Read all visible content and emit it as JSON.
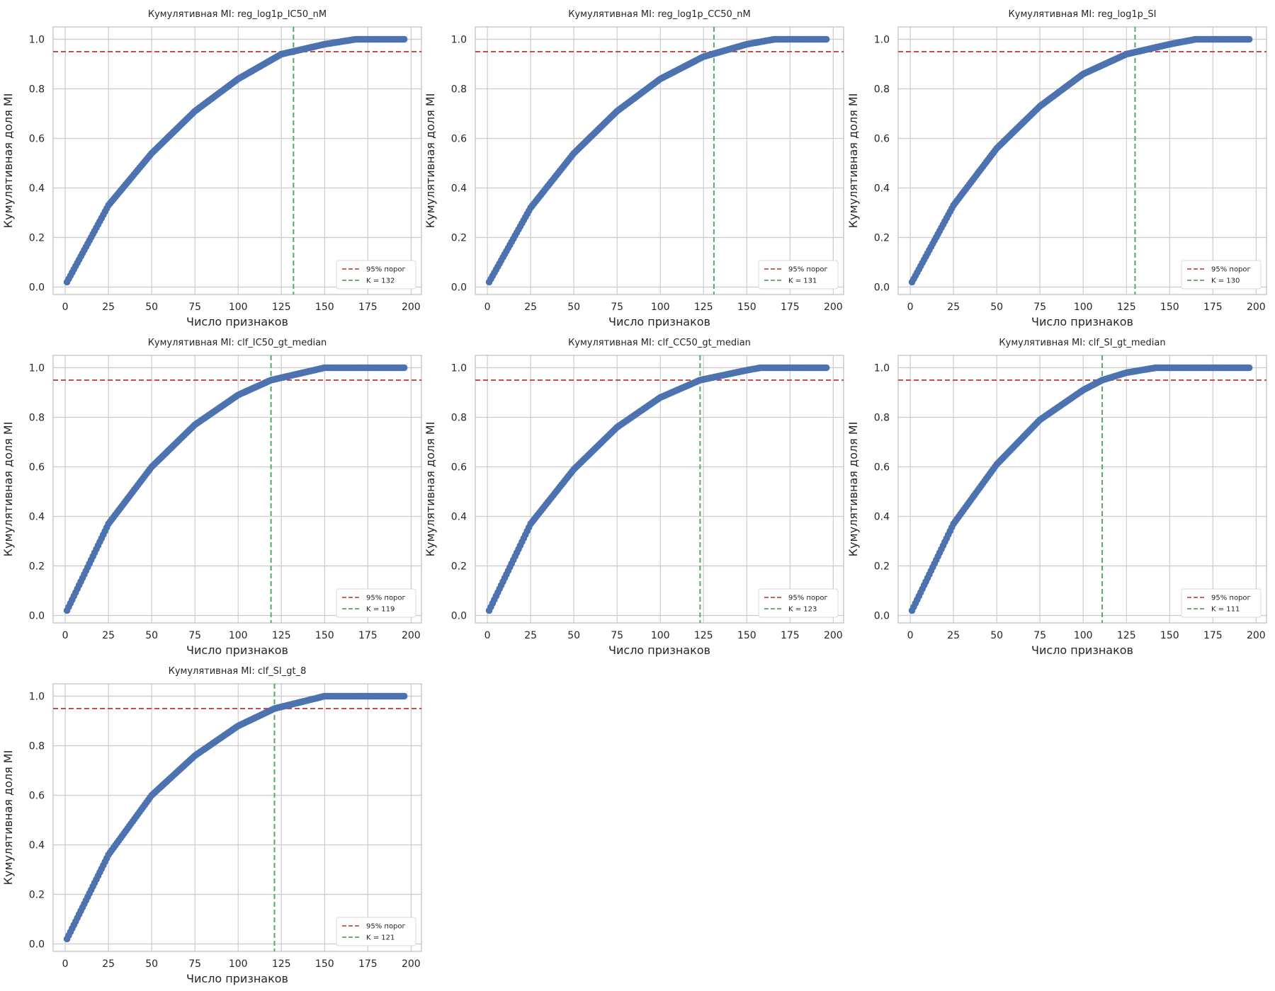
{
  "chart_data": [
    {
      "type": "scatter",
      "title": "Кумулятивная MI: reg_log1p_IC50_nM",
      "xlabel": "Число признаков",
      "ylabel": "Кумулятивная доля MI",
      "xlim": [
        -7,
        206
      ],
      "ylim": [
        -0.03,
        1.05
      ],
      "xticks": [
        0,
        25,
        50,
        75,
        100,
        125,
        150,
        175,
        200
      ],
      "yticks": [
        0.0,
        0.2,
        0.4,
        0.6,
        0.8,
        1.0
      ],
      "grid": true,
      "legend_position": "lower-right",
      "n_features": 196,
      "x_saturation": 168,
      "curve_y_at_x": [
        [
          1,
          0.02
        ],
        [
          25,
          0.33
        ],
        [
          50,
          0.54
        ],
        [
          75,
          0.71
        ],
        [
          100,
          0.84
        ],
        [
          125,
          0.94
        ],
        [
          150,
          0.98
        ],
        [
          168,
          1.0
        ],
        [
          196,
          1.0
        ]
      ],
      "threshold": 0.95,
      "k": 132,
      "legend": [
        "95% порог",
        "K = 132"
      ]
    },
    {
      "type": "scatter",
      "title": "Кумулятивная MI: reg_log1p_CC50_nM",
      "xlabel": "Число признаков",
      "ylabel": "Кумулятивная доля MI",
      "xlim": [
        -7,
        206
      ],
      "ylim": [
        -0.03,
        1.05
      ],
      "xticks": [
        0,
        25,
        50,
        75,
        100,
        125,
        150,
        175,
        200
      ],
      "yticks": [
        0.0,
        0.2,
        0.4,
        0.6,
        0.8,
        1.0
      ],
      "grid": true,
      "legend_position": "lower-right",
      "n_features": 196,
      "x_saturation": 166,
      "curve_y_at_x": [
        [
          1,
          0.02
        ],
        [
          25,
          0.32
        ],
        [
          50,
          0.54
        ],
        [
          75,
          0.71
        ],
        [
          100,
          0.84
        ],
        [
          125,
          0.93
        ],
        [
          150,
          0.98
        ],
        [
          166,
          1.0
        ],
        [
          196,
          1.0
        ]
      ],
      "threshold": 0.95,
      "k": 131,
      "legend": [
        "95% порог",
        "K = 131"
      ]
    },
    {
      "type": "scatter",
      "title": "Кумулятивная MI: reg_log1p_SI",
      "xlabel": "Число признаков",
      "ylabel": "Кумулятивная доля MI",
      "xlim": [
        -7,
        206
      ],
      "ylim": [
        -0.03,
        1.05
      ],
      "xticks": [
        0,
        25,
        50,
        75,
        100,
        125,
        150,
        175,
        200
      ],
      "yticks": [
        0.0,
        0.2,
        0.4,
        0.6,
        0.8,
        1.0
      ],
      "grid": true,
      "legend_position": "lower-right",
      "n_features": 196,
      "x_saturation": 165,
      "curve_y_at_x": [
        [
          1,
          0.02
        ],
        [
          25,
          0.33
        ],
        [
          50,
          0.56
        ],
        [
          75,
          0.73
        ],
        [
          100,
          0.86
        ],
        [
          125,
          0.94
        ],
        [
          150,
          0.98
        ],
        [
          165,
          1.0
        ],
        [
          196,
          1.0
        ]
      ],
      "threshold": 0.95,
      "k": 130,
      "legend": [
        "95% порог",
        "K = 130"
      ]
    },
    {
      "type": "scatter",
      "title": "Кумулятивная MI: clf_IC50_gt_median",
      "xlabel": "Число признаков",
      "ylabel": "Кумулятивная доля MI",
      "xlim": [
        -7,
        206
      ],
      "ylim": [
        -0.03,
        1.05
      ],
      "xticks": [
        0,
        25,
        50,
        75,
        100,
        125,
        150,
        175,
        200
      ],
      "yticks": [
        0.0,
        0.2,
        0.4,
        0.6,
        0.8,
        1.0
      ],
      "grid": true,
      "legend_position": "lower-right",
      "n_features": 196,
      "x_saturation": 152,
      "curve_y_at_x": [
        [
          1,
          0.02
        ],
        [
          25,
          0.37
        ],
        [
          50,
          0.6
        ],
        [
          75,
          0.77
        ],
        [
          100,
          0.89
        ],
        [
          119,
          0.95
        ],
        [
          150,
          1.0
        ],
        [
          196,
          1.0
        ]
      ],
      "threshold": 0.95,
      "k": 119,
      "legend": [
        "95% порог",
        "K = 119"
      ]
    },
    {
      "type": "scatter",
      "title": "Кумулятивная MI: clf_CC50_gt_median",
      "xlabel": "Число признаков",
      "ylabel": "Кумулятивная доля MI",
      "xlim": [
        -7,
        206
      ],
      "ylim": [
        -0.03,
        1.05
      ],
      "xticks": [
        0,
        25,
        50,
        75,
        100,
        125,
        150,
        175,
        200
      ],
      "yticks": [
        0.0,
        0.2,
        0.4,
        0.6,
        0.8,
        1.0
      ],
      "grid": true,
      "legend_position": "lower-right",
      "n_features": 196,
      "x_saturation": 158,
      "curve_y_at_x": [
        [
          1,
          0.02
        ],
        [
          25,
          0.37
        ],
        [
          50,
          0.59
        ],
        [
          75,
          0.76
        ],
        [
          100,
          0.88
        ],
        [
          123,
          0.95
        ],
        [
          150,
          0.99
        ],
        [
          158,
          1.0
        ],
        [
          196,
          1.0
        ]
      ],
      "threshold": 0.95,
      "k": 123,
      "legend": [
        "95% порог",
        "K = 123"
      ]
    },
    {
      "type": "scatter",
      "title": "Кумулятивная MI: clf_SI_gt_median",
      "xlabel": "Число признаков",
      "ylabel": "Кумулятивная доля MI",
      "xlim": [
        -7,
        206
      ],
      "ylim": [
        -0.03,
        1.05
      ],
      "xticks": [
        0,
        25,
        50,
        75,
        100,
        125,
        150,
        175,
        200
      ],
      "yticks": [
        0.0,
        0.2,
        0.4,
        0.6,
        0.8,
        1.0
      ],
      "grid": true,
      "legend_position": "lower-right",
      "n_features": 196,
      "x_saturation": 142,
      "curve_y_at_x": [
        [
          1,
          0.02
        ],
        [
          25,
          0.37
        ],
        [
          50,
          0.61
        ],
        [
          75,
          0.79
        ],
        [
          100,
          0.91
        ],
        [
          111,
          0.95
        ],
        [
          125,
          0.98
        ],
        [
          142,
          1.0
        ],
        [
          196,
          1.0
        ]
      ],
      "threshold": 0.95,
      "k": 111,
      "legend": [
        "95% порог",
        "K = 111"
      ]
    },
    {
      "type": "scatter",
      "title": "Кумулятивная MI: clf_SI_gt_8",
      "xlabel": "Число признаков",
      "ylabel": "Кумулятивная доля MI",
      "xlim": [
        -7,
        206
      ],
      "ylim": [
        -0.03,
        1.05
      ],
      "xticks": [
        0,
        25,
        50,
        75,
        100,
        125,
        150,
        175,
        200
      ],
      "yticks": [
        0.0,
        0.2,
        0.4,
        0.6,
        0.8,
        1.0
      ],
      "grid": true,
      "legend_position": "lower-right",
      "n_features": 196,
      "x_saturation": 152,
      "curve_y_at_x": [
        [
          1,
          0.02
        ],
        [
          25,
          0.36
        ],
        [
          50,
          0.6
        ],
        [
          75,
          0.76
        ],
        [
          100,
          0.88
        ],
        [
          121,
          0.95
        ],
        [
          150,
          1.0
        ],
        [
          196,
          1.0
        ]
      ],
      "threshold": 0.95,
      "k": 121,
      "legend": [
        "95% порог",
        "K = 121"
      ]
    }
  ],
  "colors": {
    "points": "#4c72b0",
    "threshold_line": "#c44e52",
    "k_line": "#55a868",
    "grid": "#cccccc",
    "axes_frame": "#bfbfbf",
    "text": "#262626"
  }
}
